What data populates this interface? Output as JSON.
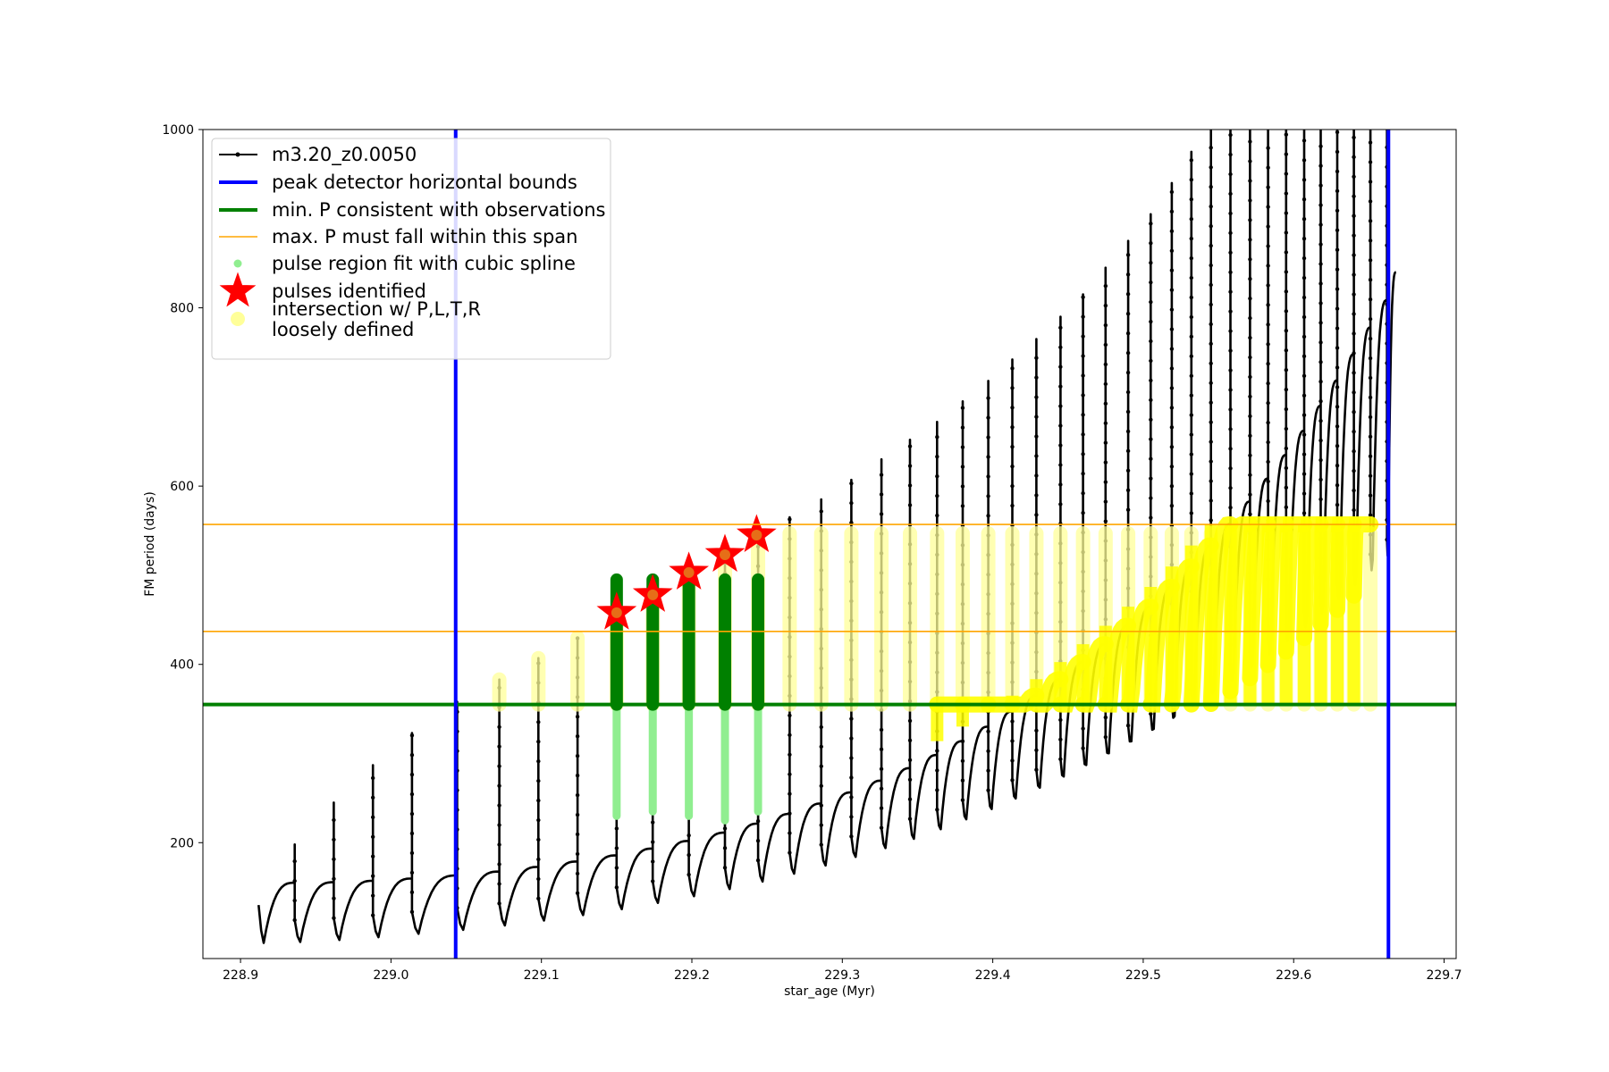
{
  "chart_data": {
    "type": "line",
    "xlabel": "star_age (Myr)",
    "ylabel": "FM period (days)",
    "xlim": [
      228.875,
      229.708
    ],
    "ylim": [
      70,
      1000
    ],
    "xticks": [
      228.9,
      229.0,
      229.1,
      229.2,
      229.3,
      229.4,
      229.5,
      229.6,
      229.7
    ],
    "xtick_labels": [
      "228.9",
      "229.0",
      "229.1",
      "229.2",
      "229.3",
      "229.4",
      "229.5",
      "229.6",
      "229.7"
    ],
    "yticks": [
      200,
      400,
      600,
      800,
      1000
    ],
    "ytick_labels": [
      "200",
      "400",
      "600",
      "800",
      "1000"
    ],
    "grid": false,
    "legend_position": "upper-left",
    "legend": [
      {
        "label": "m3.20_z0.0050",
        "kind": "line-dot",
        "color": "#000000"
      },
      {
        "label": "peak detector horizontal bounds",
        "kind": "line",
        "color": "#0000ff"
      },
      {
        "label": "min. P consistent with observations",
        "kind": "line",
        "color": "#008000"
      },
      {
        "label": "max. P must fall within this span",
        "kind": "line",
        "color": "#ffa500"
      },
      {
        "label": "pulse region fit with cubic spline",
        "kind": "dot",
        "color": "#90ee90"
      },
      {
        "label": "pulses identified",
        "kind": "star",
        "color": "#ff0000"
      },
      {
        "label": "intersection w/ P,L,T,R",
        "label2": "loosely defined",
        "kind": "dot",
        "color": "#ffff99"
      }
    ],
    "vertical_lines": [
      229.043,
      229.663
    ],
    "min_period_line": 355,
    "max_period_span": [
      437,
      557
    ],
    "track": {
      "start_age": 228.912,
      "end_age": 229.668,
      "pulse_ages": [
        228.912,
        228.936,
        228.962,
        228.988,
        229.014,
        229.044,
        229.072,
        229.098,
        229.124,
        229.15,
        229.174,
        229.198,
        229.222,
        229.244,
        229.265,
        229.286,
        229.306,
        229.326,
        229.345,
        229.363,
        229.38,
        229.397,
        229.413,
        229.429,
        229.445,
        229.46,
        229.475,
        229.49,
        229.505,
        229.519,
        229.532,
        229.545,
        229.558,
        229.571,
        229.583,
        229.595,
        229.607,
        229.618,
        229.629,
        229.64,
        229.651,
        229.662
      ],
      "spike_peaks": [
        130,
        198,
        245,
        287,
        323,
        358,
        383,
        407,
        430,
        460,
        480,
        500,
        523,
        545,
        565,
        585,
        607,
        630,
        652,
        672,
        695,
        718,
        742,
        765,
        790,
        815,
        845,
        875,
        905,
        940,
        975,
        1000,
        1000,
        1000,
        1000,
        1000,
        1000,
        1000,
        1000,
        1000,
        1000,
        1000
      ],
      "dip_min_first": 82,
      "dip_min_last": 510,
      "plateau_first": 155,
      "plateau_last": 840
    },
    "spline_pulses": [
      229.15,
      229.174,
      229.198,
      229.222,
      229.244
    ],
    "spline_high": [
      495,
      495,
      495,
      495,
      495
    ],
    "spline_low": [
      230,
      235,
      230,
      225,
      235
    ],
    "stars": [
      {
        "x": 229.15,
        "y": 458
      },
      {
        "x": 229.174,
        "y": 478
      },
      {
        "x": 229.198,
        "y": 503
      },
      {
        "x": 229.222,
        "y": 523
      },
      {
        "x": 229.243,
        "y": 545
      }
    ]
  }
}
